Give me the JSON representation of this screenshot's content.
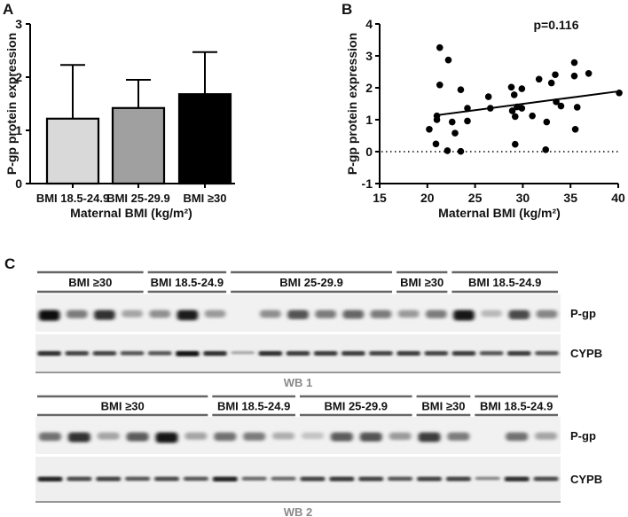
{
  "chart_data": [
    {
      "panel": "A",
      "type": "bar",
      "title": "",
      "xlabel": "Maternal BMI (kg/m²)",
      "ylabel": "P-gp protein expression",
      "categories": [
        "BMI 18.5-24.9",
        "BMI 25-29.9",
        "BMI ≥30"
      ],
      "values": [
        1.22,
        1.42,
        1.68
      ],
      "error_upper": [
        2.23,
        1.95,
        2.47
      ],
      "colors": [
        "#d9d9d9",
        "#a0a0a0",
        "#000000"
      ],
      "ylim": [
        0,
        3
      ],
      "yticks": [
        0,
        1,
        2,
        3
      ],
      "grid": false
    },
    {
      "panel": "B",
      "type": "scatter",
      "title": "",
      "annotation": "p=0.116",
      "xlabel": "Maternal BMI (kg/m²)",
      "ylabel": "P-gp protein expression",
      "xlim": [
        15,
        40
      ],
      "ylim": [
        -1,
        4
      ],
      "xticks": [
        15,
        20,
        25,
        30,
        35,
        40
      ],
      "yticks": [
        -1,
        0,
        1,
        2,
        3,
        4
      ],
      "reference_line_y": 0,
      "grid": false,
      "points": [
        [
          20.2,
          0.7
        ],
        [
          20.9,
          0.24
        ],
        [
          21.0,
          1.0
        ],
        [
          21.0,
          1.12
        ],
        [
          21.3,
          3.26
        ],
        [
          21.3,
          2.09
        ],
        [
          22.2,
          2.87
        ],
        [
          22.1,
          0.03
        ],
        [
          22.6,
          0.93
        ],
        [
          22.9,
          0.58
        ],
        [
          23.5,
          1.94
        ],
        [
          23.5,
          0.01
        ],
        [
          24.2,
          1.36
        ],
        [
          24.2,
          0.96
        ],
        [
          26.4,
          1.72
        ],
        [
          26.6,
          1.36
        ],
        [
          28.8,
          2.02
        ],
        [
          28.9,
          1.28
        ],
        [
          29.1,
          1.78
        ],
        [
          29.2,
          1.1
        ],
        [
          29.2,
          0.23
        ],
        [
          29.4,
          1.4
        ],
        [
          29.9,
          1.97
        ],
        [
          29.9,
          1.36
        ],
        [
          31.0,
          1.12
        ],
        [
          31.7,
          2.27
        ],
        [
          32.5,
          0.93
        ],
        [
          32.4,
          0.06
        ],
        [
          33.0,
          2.15
        ],
        [
          33.4,
          2.41
        ],
        [
          33.5,
          1.56
        ],
        [
          34.0,
          1.43
        ],
        [
          35.4,
          2.79
        ],
        [
          35.4,
          2.37
        ],
        [
          35.5,
          0.7
        ],
        [
          35.7,
          1.39
        ],
        [
          36.9,
          2.45
        ],
        [
          40.1,
          1.84
        ]
      ],
      "regression_line": {
        "x": [
          20.7,
          39.8
        ],
        "y": [
          1.13,
          1.88
        ]
      }
    }
  ],
  "panels": {
    "a": {
      "label": "A"
    },
    "b": {
      "label": "B"
    },
    "c": {
      "label": "C"
    }
  },
  "western_blots": {
    "wb1": {
      "label": "WB 1",
      "groups": [
        {
          "label": "BMI ≥30",
          "lanes": 4
        },
        {
          "label": "BMI 18.5-24.9",
          "lanes": 3
        },
        {
          "label": "BMI 25-29.9",
          "lanes": 6
        },
        {
          "label": "BMI ≥30",
          "lanes": 2
        },
        {
          "label": "BMI 18.5-24.9",
          "lanes": 4
        }
      ],
      "pgp_intensity": [
        1.0,
        0.45,
        0.8,
        0.25,
        0.35,
        0.9,
        0.3,
        0,
        0.35,
        0.65,
        0.45,
        0.55,
        0.45,
        0.3,
        0.45,
        0.95,
        0.15,
        0.7,
        0.4
      ],
      "cypb_intensity": [
        0.8,
        0.7,
        0.7,
        0.6,
        0.6,
        0.95,
        0.8,
        0.2,
        0.8,
        0.75,
        0.75,
        0.75,
        0.7,
        0.75,
        0.7,
        0.75,
        0.6,
        0.75,
        0.6
      ]
    },
    "wb2": {
      "label": "WB 2",
      "groups": [
        {
          "label": "BMI ≥30",
          "lanes": 6
        },
        {
          "label": "BMI 18.5-24.9",
          "lanes": 3
        },
        {
          "label": "BMI 25-29.9",
          "lanes": 4
        },
        {
          "label": "BMI ≥30",
          "lanes": 2
        },
        {
          "label": "BMI 18.5-24.9",
          "lanes": 3
        }
      ],
      "pgp_intensity": [
        0.5,
        0.8,
        0.25,
        0.6,
        0.95,
        0.25,
        0.5,
        0.45,
        0.2,
        0.1,
        0.6,
        0.65,
        0.3,
        0.75,
        0.45,
        0,
        0.5,
        0.25
      ],
      "cypb_intensity": [
        0.85,
        0.65,
        0.7,
        0.6,
        0.65,
        0.6,
        0.85,
        0.5,
        0.5,
        0.7,
        0.75,
        0.7,
        0.6,
        0.7,
        0.7,
        0.35,
        0.8,
        0.65
      ]
    },
    "row_labels": {
      "pgp": "P-gp",
      "cypb": "CYPB"
    }
  }
}
